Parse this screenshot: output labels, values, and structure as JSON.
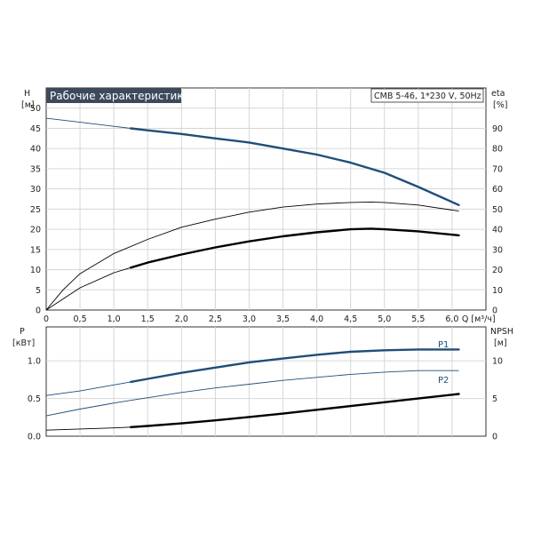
{
  "chart_data": [
    {
      "type": "line",
      "title": "Рабочие характеристики",
      "model_label": "CMB 5-46, 1*230 V, 50Hz",
      "x_axis": {
        "label": "Q [м³/ч]",
        "unit": "Q [м³/ч]",
        "range": [
          0,
          6.5
        ],
        "ticks": [
          0,
          0.5,
          1.0,
          1.5,
          2.0,
          2.5,
          3.0,
          3.5,
          4.0,
          4.5,
          5.0,
          5.5,
          6.0
        ],
        "tick_labels": [
          "0",
          "0,5",
          "1,0",
          "1,5",
          "2,0",
          "2,5",
          "3,0",
          "3,5",
          "4,0",
          "4,5",
          "5,0",
          "5,5",
          "6,0"
        ]
      },
      "y_left": {
        "label": "H",
        "unit": "[м]",
        "range": [
          0,
          55
        ],
        "ticks": [
          0,
          5,
          10,
          15,
          20,
          25,
          30,
          35,
          40,
          45,
          50
        ],
        "tick_labels": [
          "0",
          "5",
          "10",
          "15",
          "20",
          "25",
          "30",
          "35",
          "40",
          "45",
          "50"
        ]
      },
      "y_right": {
        "label": "eta",
        "unit": "[%]",
        "range": [
          0,
          110
        ],
        "ticks": [
          0,
          10,
          20,
          30,
          40,
          50,
          60,
          70,
          80,
          90
        ],
        "tick_labels": [
          "0",
          "10",
          "20",
          "30",
          "40",
          "50",
          "60",
          "70",
          "80",
          "90"
        ]
      },
      "grid": true,
      "series": [
        {
          "axis": "left",
          "color": "#1f4e79",
          "x": [
            0,
            0.5,
            1.0,
            1.25,
            1.5,
            2.0,
            2.5,
            3.0,
            3.5,
            4.0,
            4.5,
            5.0,
            5.5,
            6.1
          ],
          "y": [
            47.5,
            46.5,
            45.5,
            45.0,
            44.5,
            43.6,
            42.5,
            41.5,
            40.0,
            38.5,
            36.5,
            34.0,
            30.5,
            26.0
          ],
          "bold_from": 1.25
        },
        {
          "axis": "right",
          "color": "#000000",
          "x": [
            0,
            0.25,
            0.5,
            1.0,
            1.5,
            2.0,
            2.5,
            3.0,
            3.5,
            4.0,
            4.5,
            4.8,
            5.0,
            5.5,
            6.1
          ],
          "y": [
            0,
            10,
            18,
            28,
            35,
            41,
            45,
            48.5,
            51,
            52.5,
            53.3,
            53.5,
            53.3,
            52,
            49
          ],
          "bold_from": null
        },
        {
          "axis": "right",
          "color": "#000000",
          "x": [
            0,
            0.5,
            1.0,
            1.25,
            1.5,
            2.0,
            2.5,
            3.0,
            3.5,
            4.0,
            4.5,
            4.8,
            5.0,
            5.5,
            6.1
          ],
          "y": [
            0,
            11,
            18.5,
            21,
            23.5,
            27.5,
            31,
            34,
            36.5,
            38.5,
            40,
            40.3,
            40,
            39,
            37
          ],
          "bold_from": 1.25
        }
      ]
    },
    {
      "type": "line",
      "x_axis": {
        "range": [
          0,
          6.5
        ]
      },
      "y_left": {
        "label": "P",
        "unit": "[кВт]",
        "range": [
          0,
          1.45
        ],
        "ticks": [
          0,
          0.5,
          1.0
        ],
        "tick_labels": [
          "0.0",
          "0.5",
          "1.0"
        ]
      },
      "y_right": {
        "label": "NPSH",
        "unit": "[м]",
        "range": [
          0,
          14.5
        ],
        "ticks": [
          0,
          5,
          10
        ],
        "tick_labels": [
          "0",
          "5",
          "10"
        ]
      },
      "grid": true,
      "series": [
        {
          "name": "P1",
          "axis": "left",
          "color": "#1f4e79",
          "x": [
            0,
            0.5,
            1.0,
            1.25,
            1.5,
            2.0,
            2.5,
            3.0,
            3.5,
            4.0,
            4.5,
            5.0,
            5.5,
            6.1
          ],
          "y": [
            0.54,
            0.6,
            0.68,
            0.72,
            0.76,
            0.84,
            0.91,
            0.98,
            1.03,
            1.08,
            1.12,
            1.14,
            1.15,
            1.15
          ],
          "bold_from": 1.25
        },
        {
          "name": "P2",
          "axis": "left",
          "color": "#1f4e79",
          "x": [
            0,
            0.5,
            1.0,
            1.5,
            2.0,
            2.5,
            3.0,
            3.5,
            4.0,
            4.5,
            5.0,
            5.5,
            6.1
          ],
          "y": [
            0.27,
            0.36,
            0.44,
            0.51,
            0.58,
            0.64,
            0.69,
            0.74,
            0.78,
            0.82,
            0.85,
            0.87,
            0.87
          ],
          "bold_from": null
        },
        {
          "axis": "right",
          "color": "#000000",
          "x": [
            0,
            0.5,
            1.0,
            1.25,
            1.5,
            2.0,
            2.5,
            3.0,
            3.5,
            4.0,
            4.5,
            5.0,
            5.5,
            6.1
          ],
          "y": [
            0.8,
            0.95,
            1.1,
            1.2,
            1.35,
            1.7,
            2.1,
            2.55,
            3.0,
            3.5,
            4.0,
            4.5,
            5.0,
            5.6
          ],
          "bold_from": 1.25
        }
      ]
    }
  ]
}
